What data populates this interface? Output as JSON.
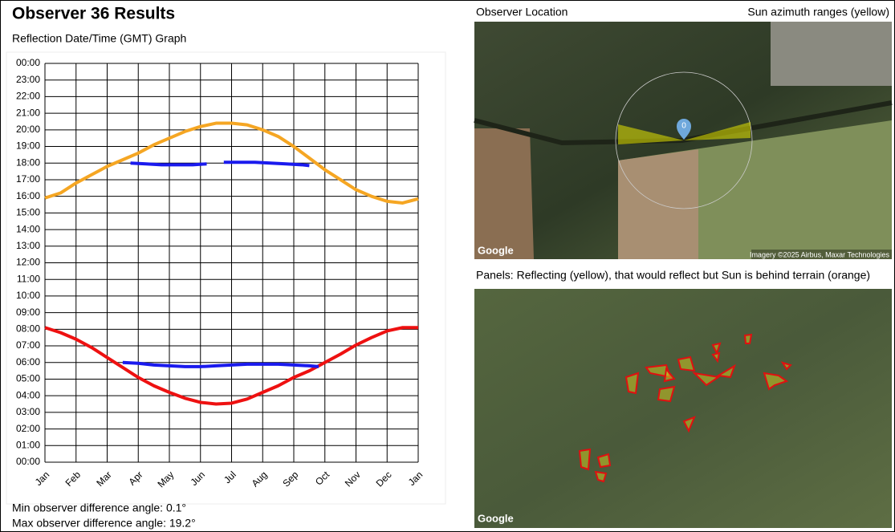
{
  "title": "Observer 36 Results",
  "chart_data": {
    "type": "line",
    "title": "Reflection Date/Time (GMT) Graph",
    "xlim": [
      0,
      12
    ],
    "xticks": [
      {
        "value": 0,
        "label": "Jan"
      },
      {
        "value": 1,
        "label": "Feb"
      },
      {
        "value": 2,
        "label": "Mar"
      },
      {
        "value": 3,
        "label": "Apr"
      },
      {
        "value": 4,
        "label": "May"
      },
      {
        "value": 5,
        "label": "Jun"
      },
      {
        "value": 6,
        "label": "Jul"
      },
      {
        "value": 7,
        "label": "Aug"
      },
      {
        "value": 8,
        "label": "Sep"
      },
      {
        "value": 9,
        "label": "Oct"
      },
      {
        "value": 10,
        "label": "Nov"
      },
      {
        "value": 11,
        "label": "Dec"
      },
      {
        "value": 12,
        "label": "Jan"
      }
    ],
    "ylim": [
      0,
      24
    ],
    "yticks": [
      {
        "value": 0,
        "label": "00:00"
      },
      {
        "value": 1,
        "label": "01:00"
      },
      {
        "value": 2,
        "label": "02:00"
      },
      {
        "value": 3,
        "label": "03:00"
      },
      {
        "value": 4,
        "label": "04:00"
      },
      {
        "value": 5,
        "label": "05:00"
      },
      {
        "value": 6,
        "label": "06:00"
      },
      {
        "value": 7,
        "label": "07:00"
      },
      {
        "value": 8,
        "label": "08:00"
      },
      {
        "value": 9,
        "label": "09:00"
      },
      {
        "value": 10,
        "label": "10:00"
      },
      {
        "value": 11,
        "label": "11:00"
      },
      {
        "value": 12,
        "label": "12:00"
      },
      {
        "value": 13,
        "label": "13:00"
      },
      {
        "value": 14,
        "label": "14:00"
      },
      {
        "value": 15,
        "label": "15:00"
      },
      {
        "value": 16,
        "label": "16:00"
      },
      {
        "value": 17,
        "label": "17:00"
      },
      {
        "value": 18,
        "label": "18:00"
      },
      {
        "value": 19,
        "label": "19:00"
      },
      {
        "value": 20,
        "label": "20:00"
      },
      {
        "value": 21,
        "label": "21:00"
      },
      {
        "value": 22,
        "label": "22:00"
      },
      {
        "value": 23,
        "label": "23:00"
      },
      {
        "value": 24,
        "label": "00:00"
      }
    ],
    "grid": true,
    "series": [
      {
        "color": "#f5a623",
        "x": [
          0,
          0.5,
          1,
          1.5,
          2,
          2.5,
          3,
          3.5,
          4,
          4.5,
          5,
          5.5,
          6,
          6.5,
          7,
          7.5,
          8,
          8.5,
          9,
          9.5,
          10,
          10.5,
          11,
          11.5,
          12
        ],
        "values": [
          15.9,
          16.2,
          16.8,
          17.3,
          17.8,
          18.2,
          18.6,
          19.1,
          19.5,
          19.9,
          20.2,
          20.4,
          20.4,
          20.3,
          20.0,
          19.6,
          19.0,
          18.3,
          17.6,
          17.0,
          16.4,
          16.0,
          15.7,
          15.6,
          15.85
        ]
      },
      {
        "color": "#ee1111",
        "x": [
          0,
          0.5,
          1,
          1.5,
          2,
          2.5,
          3,
          3.5,
          4,
          4.5,
          5,
          5.5,
          6,
          6.5,
          7,
          7.5,
          8,
          8.5,
          9,
          9.5,
          10,
          10.5,
          11,
          11.5,
          12
        ],
        "values": [
          8.1,
          7.8,
          7.4,
          6.9,
          6.3,
          5.7,
          5.1,
          4.6,
          4.2,
          3.85,
          3.6,
          3.5,
          3.55,
          3.8,
          4.2,
          4.6,
          5.1,
          5.5,
          6.0,
          6.5,
          7.05,
          7.5,
          7.9,
          8.1,
          8.1
        ]
      },
      {
        "color": "#1a1aee",
        "x": [
          2.75,
          3.25,
          3.75,
          4.25,
          4.75,
          5.2,
          5.5,
          5.75,
          6.25,
          6.75,
          7.25,
          7.75,
          8.25,
          8.5
        ],
        "values": [
          18.0,
          17.95,
          17.9,
          17.9,
          17.9,
          17.95,
          null,
          18.05,
          18.05,
          18.05,
          18.0,
          17.95,
          17.9,
          17.85
        ]
      },
      {
        "color": "#1a1aee",
        "x": [
          2.5,
          3,
          3.5,
          4,
          4.5,
          5,
          5.5,
          6,
          6.5,
          7,
          7.5,
          8,
          8.5,
          8.8
        ],
        "values": [
          6.0,
          5.95,
          5.85,
          5.8,
          5.75,
          5.75,
          5.8,
          5.85,
          5.9,
          5.9,
          5.9,
          5.85,
          5.8,
          5.75
        ]
      }
    ]
  },
  "stats": [
    "Min observer difference angle: 0.1°",
    "Max observer difference angle: 19.2°"
  ],
  "location_map": {
    "title": "Observer Location",
    "legend": "Sun azimuth ranges (yellow)",
    "marker": "0",
    "brand": "Google",
    "credit": "Imagery ©2025 Airbus, Maxar Technologies"
  },
  "panels_map": {
    "title": "Panels: Reflecting (yellow), that would reflect but Sun is behind terrain (orange)",
    "brand": "Google"
  }
}
